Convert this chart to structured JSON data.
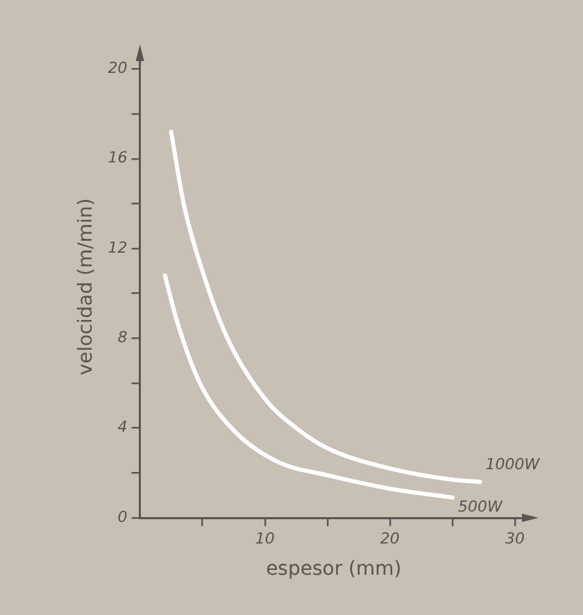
{
  "chart_data": {
    "type": "line",
    "xlabel": "espesor (mm)",
    "ylabel": "velocidad (m/min)",
    "series": [
      {
        "name": "1000W",
        "color": "#ffffff",
        "x": [
          2.5,
          3.5,
          5,
          7,
          10,
          12.5,
          15,
          20,
          25,
          27.2
        ],
        "values": [
          17.2,
          14,
          11,
          8,
          5.3,
          4,
          3.1,
          2.2,
          1.7,
          1.6
        ]
      },
      {
        "name": "500W",
        "color": "#ffffff",
        "x": [
          2,
          3,
          4.8,
          7.5,
          11,
          15,
          20,
          25
        ],
        "values": [
          10.8,
          8.7,
          6,
          3.9,
          2.5,
          1.9,
          1.3,
          0.9
        ]
      }
    ],
    "xlim": [
      0,
      31
    ],
    "ylim": [
      0,
      20.6
    ],
    "xticks": [
      {
        "value": 5,
        "label": null
      },
      10,
      {
        "value": 15,
        "label": null
      },
      20,
      {
        "value": 25,
        "label": null
      },
      30
    ],
    "yticks": [
      0,
      {
        "value": 2,
        "label": null
      },
      4,
      {
        "value": 6,
        "label": null
      },
      8,
      {
        "value": 10,
        "label": null
      },
      12,
      {
        "value": 14,
        "label": null
      },
      16,
      {
        "value": 18,
        "label": null
      },
      20
    ],
    "grid": false,
    "legend": false,
    "marker": "none",
    "line_style": "solid"
  }
}
